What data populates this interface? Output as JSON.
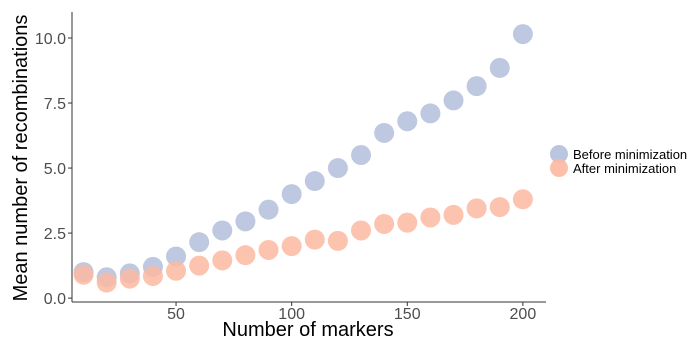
{
  "chart_data": {
    "type": "scatter",
    "xlabel": "Number of markers",
    "ylabel": "Mean number of recombinations",
    "xlim": [
      5,
      210
    ],
    "ylim": [
      -0.15,
      11.0
    ],
    "x_ticks": [
      50,
      100,
      150,
      200
    ],
    "x_tick_labels": [
      "50",
      "100",
      "150",
      "200"
    ],
    "y_ticks": [
      0.0,
      2.5,
      5.0,
      7.5,
      10.0
    ],
    "y_tick_labels": [
      "0.0",
      "2.5",
      "5.0",
      "7.5",
      "10.0"
    ],
    "grid": false,
    "legend_position": "right",
    "x": [
      10,
      20,
      30,
      40,
      50,
      60,
      70,
      80,
      90,
      100,
      110,
      120,
      130,
      140,
      150,
      160,
      170,
      180,
      190,
      200
    ],
    "series": [
      {
        "name": "Before minimization",
        "color": "#b3bfdc",
        "values": [
          1.0,
          0.8,
          0.95,
          1.2,
          1.6,
          2.15,
          2.6,
          2.95,
          3.4,
          4.0,
          4.5,
          5.0,
          5.5,
          6.35,
          6.8,
          7.1,
          7.6,
          8.15,
          8.85,
          10.15
        ]
      },
      {
        "name": "After minimization",
        "color": "#fcb9a1",
        "values": [
          0.9,
          0.6,
          0.75,
          0.85,
          1.05,
          1.25,
          1.45,
          1.65,
          1.85,
          2.0,
          2.25,
          2.2,
          2.6,
          2.85,
          2.9,
          3.1,
          3.2,
          3.45,
          3.5,
          3.8
        ]
      }
    ]
  }
}
